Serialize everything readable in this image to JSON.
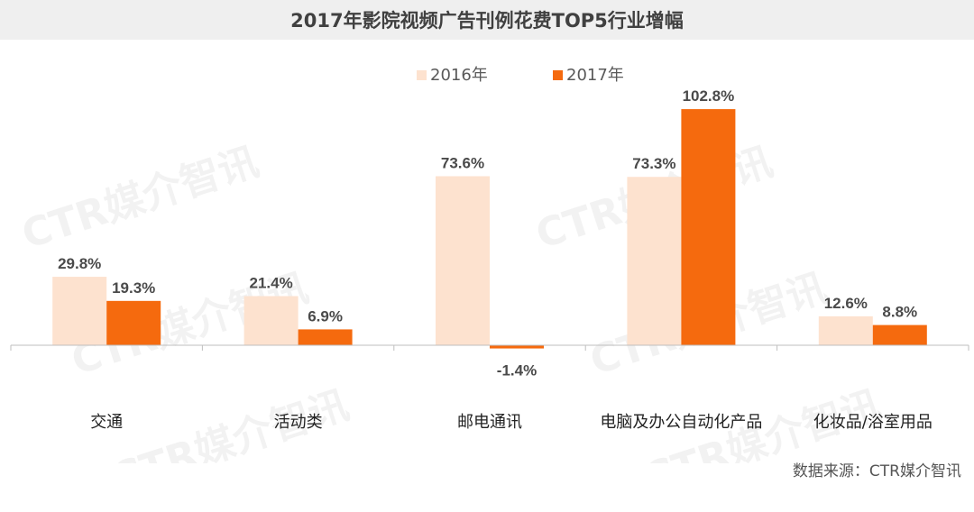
{
  "colors": {
    "series_2016": "#fde2cf",
    "series_2017": "#f56a0e",
    "axis": "#bfbfbf",
    "label": "#4a4a4a"
  },
  "title": "2017年影院视频广告刊例花费TOP5行业增幅",
  "source": "数据来源：CTR媒介智讯",
  "watermark": "CTR媒介智讯",
  "chart_data": {
    "type": "bar",
    "title": "2017年影院视频广告刊例花费TOP5行业增幅",
    "categories": [
      "交通",
      "活动类",
      "邮电通讯",
      "电脑及办公自动化产品",
      "化妆品/浴室用品"
    ],
    "series": [
      {
        "name": "2016年",
        "values": [
          29.8,
          21.4,
          73.6,
          73.3,
          12.6
        ],
        "labels": [
          "29.8%",
          "21.4%",
          "73.6%",
          "73.3%",
          "12.6%"
        ]
      },
      {
        "name": "2017年",
        "values": [
          19.3,
          6.9,
          -1.4,
          102.8,
          8.8
        ],
        "labels": [
          "19.3%",
          "6.9%",
          "-1.4%",
          "102.8%",
          "8.8%"
        ]
      }
    ],
    "ylim": [
      -10,
      110
    ],
    "unit": "%",
    "grid": false,
    "legend": "top-center"
  }
}
